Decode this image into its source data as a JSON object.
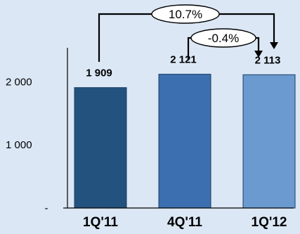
{
  "colors": {
    "background": "#dbe7f5",
    "axis": "#000000",
    "arrow": "#000000"
  },
  "chart_data": {
    "type": "bar",
    "categories": [
      "1Q'11",
      "4Q'11",
      "1Q'12"
    ],
    "values": [
      1909,
      2121,
      2113
    ],
    "value_labels": [
      "1 909",
      "2 121",
      "2 113"
    ],
    "bar_colors": [
      "#24527e",
      "#3c6fb0",
      "#6a9ad0"
    ],
    "ylim": [
      0,
      2540
    ],
    "yticks": [
      {
        "value": 0,
        "label": "-"
      },
      {
        "value": 1000,
        "label": "1 000"
      },
      {
        "value": 2000,
        "label": "2 000"
      }
    ],
    "annotations": [
      {
        "label": "10.7%",
        "from_category": 0,
        "to_category": 2
      },
      {
        "label": "-0.4%",
        "from_category": 1,
        "to_category": 2
      }
    ],
    "grid": false,
    "legend": "none"
  }
}
